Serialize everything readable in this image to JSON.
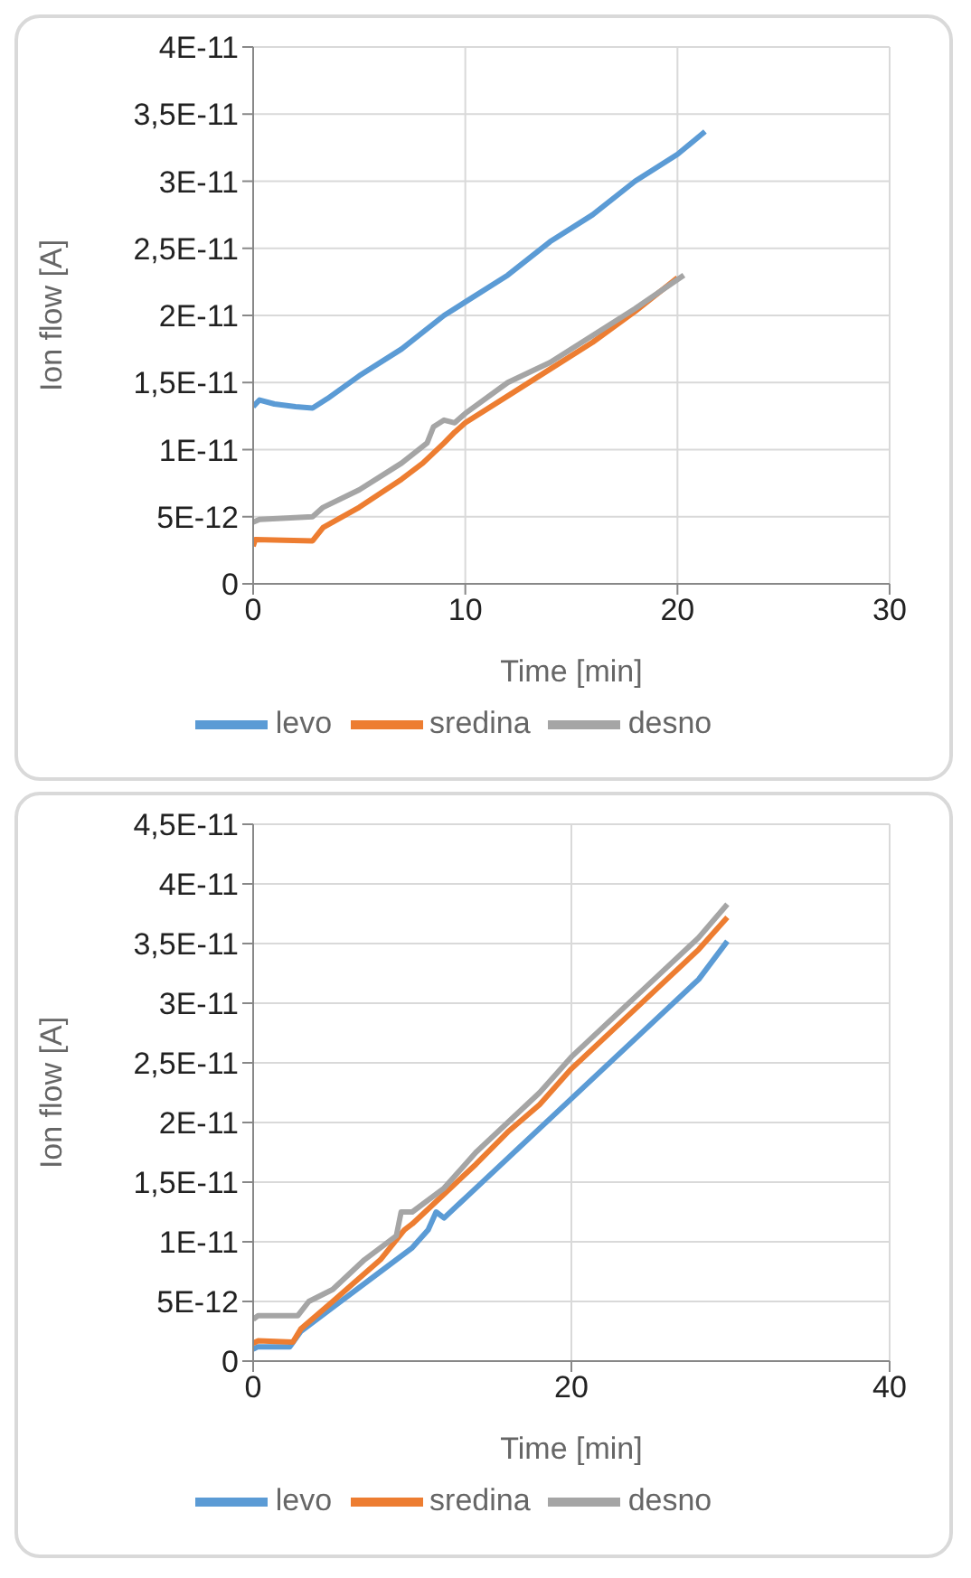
{
  "chart_data": [
    {
      "type": "line",
      "xlabel": "Time [min]",
      "ylabel": "Ion flow [A]",
      "xlim": [
        0,
        30
      ],
      "xticks": [
        0,
        10,
        20,
        30
      ],
      "ylim": [
        0,
        4e-11
      ],
      "yticks": [
        {
          "value": 0,
          "label": "0"
        },
        {
          "value": 5e-12,
          "label": "5E-12"
        },
        {
          "value": 1e-11,
          "label": "1E-11"
        },
        {
          "value": 1.5e-11,
          "label": "1,5E-11"
        },
        {
          "value": 2e-11,
          "label": "2E-11"
        },
        {
          "value": 2.5e-11,
          "label": "2,5E-11"
        },
        {
          "value": 3e-11,
          "label": "3E-11"
        },
        {
          "value": 3.5e-11,
          "label": "3,5E-11"
        },
        {
          "value": 4e-11,
          "label": "4E-11"
        }
      ],
      "grid": true,
      "legend": "bottom",
      "marker": "none",
      "line_style": "solid",
      "series": [
        {
          "name": "levo",
          "color": "#5b9bd5",
          "x": [
            0,
            0.3,
            1,
            2,
            2.8,
            3.5,
            5,
            7,
            9,
            10,
            12,
            14,
            16,
            18,
            20,
            21.3
          ],
          "values": [
            1.32e-11,
            1.37e-11,
            1.34e-11,
            1.32e-11,
            1.31e-11,
            1.38e-11,
            1.55e-11,
            1.75e-11,
            2e-11,
            2.1e-11,
            2.3e-11,
            2.55e-11,
            2.75e-11,
            3e-11,
            3.2e-11,
            3.37e-11
          ]
        },
        {
          "name": "sredina",
          "color": "#ed7d31",
          "x": [
            0,
            0.1,
            2.8,
            3.3,
            5,
            7,
            8,
            9,
            9.5,
            10,
            12,
            14,
            16,
            18,
            20
          ],
          "values": [
            2.8e-12,
            3.3e-12,
            3.2e-12,
            4.2e-12,
            5.7e-12,
            7.8e-12,
            9e-12,
            1.05e-11,
            1.13e-11,
            1.2e-11,
            1.4e-11,
            1.6e-11,
            1.8e-11,
            2.03e-11,
            2.28e-11
          ]
        },
        {
          "name": "desno",
          "color": "#a5a5a5",
          "x": [
            0,
            0.3,
            2.8,
            3.3,
            5,
            7,
            8.2,
            8.5,
            9,
            9.5,
            10,
            12,
            14,
            16,
            18,
            20.3
          ],
          "values": [
            4.6e-12,
            4.8e-12,
            5e-12,
            5.7e-12,
            7e-12,
            9e-12,
            1.05e-11,
            1.17e-11,
            1.22e-11,
            1.2e-11,
            1.27e-11,
            1.5e-11,
            1.65e-11,
            1.85e-11,
            2.05e-11,
            2.3e-11
          ]
        }
      ]
    },
    {
      "type": "line",
      "xlabel": "Time [min]",
      "ylabel": "Ion flow [A]",
      "xlim": [
        0,
        40
      ],
      "xticks": [
        0,
        20,
        40
      ],
      "ylim": [
        0,
        4.5e-11
      ],
      "yticks": [
        {
          "value": 0,
          "label": "0"
        },
        {
          "value": 5e-12,
          "label": "5E-12"
        },
        {
          "value": 1e-11,
          "label": "1E-11"
        },
        {
          "value": 1.5e-11,
          "label": "1,5E-11"
        },
        {
          "value": 2e-11,
          "label": "2E-11"
        },
        {
          "value": 2.5e-11,
          "label": "2,5E-11"
        },
        {
          "value": 3e-11,
          "label": "3E-11"
        },
        {
          "value": 3.5e-11,
          "label": "3,5E-11"
        },
        {
          "value": 4e-11,
          "label": "4E-11"
        },
        {
          "value": 4.5e-11,
          "label": "4,5E-11"
        }
      ],
      "grid": true,
      "legend": "bottom",
      "marker": "none",
      "line_style": "solid",
      "series": [
        {
          "name": "levo",
          "color": "#5b9bd5",
          "x": [
            0,
            0.3,
            2.3,
            3,
            5,
            8,
            10,
            11,
            11.5,
            12,
            14,
            16,
            18,
            20,
            22,
            24,
            26,
            28,
            29.8
          ],
          "values": [
            1e-12,
            1.2e-12,
            1.2e-12,
            2.5e-12,
            4.5e-12,
            7.5e-12,
            9.5e-12,
            1.1e-11,
            1.25e-11,
            1.2e-11,
            1.45e-11,
            1.7e-11,
            1.95e-11,
            2.2e-11,
            2.45e-11,
            2.7e-11,
            2.95e-11,
            3.2e-11,
            3.52e-11
          ]
        },
        {
          "name": "sredina",
          "color": "#ed7d31",
          "x": [
            0,
            0.3,
            2.5,
            3,
            5,
            8,
            9.5,
            10,
            12,
            14,
            16,
            18,
            20,
            22,
            24,
            26,
            28,
            29.8
          ],
          "values": [
            1.5e-12,
            1.7e-12,
            1.6e-12,
            2.7e-12,
            5e-12,
            8.5e-12,
            1.1e-11,
            1.15e-11,
            1.4e-11,
            1.65e-11,
            1.92e-11,
            2.15e-11,
            2.45e-11,
            2.7e-11,
            2.95e-11,
            3.2e-11,
            3.45e-11,
            3.72e-11
          ]
        },
        {
          "name": "desno",
          "color": "#a5a5a5",
          "x": [
            0,
            0.3,
            2.8,
            3.5,
            5,
            7,
            9,
            9.3,
            10,
            12,
            14,
            16,
            18,
            20,
            22,
            24,
            26,
            28,
            29.8
          ],
          "values": [
            3.5e-12,
            3.8e-12,
            3.8e-12,
            5e-12,
            6e-12,
            8.5e-12,
            1.05e-11,
            1.25e-11,
            1.25e-11,
            1.45e-11,
            1.75e-11,
            2e-11,
            2.25e-11,
            2.55e-11,
            2.8e-11,
            3.05e-11,
            3.3e-11,
            3.55e-11,
            3.83e-11
          ]
        }
      ]
    }
  ]
}
